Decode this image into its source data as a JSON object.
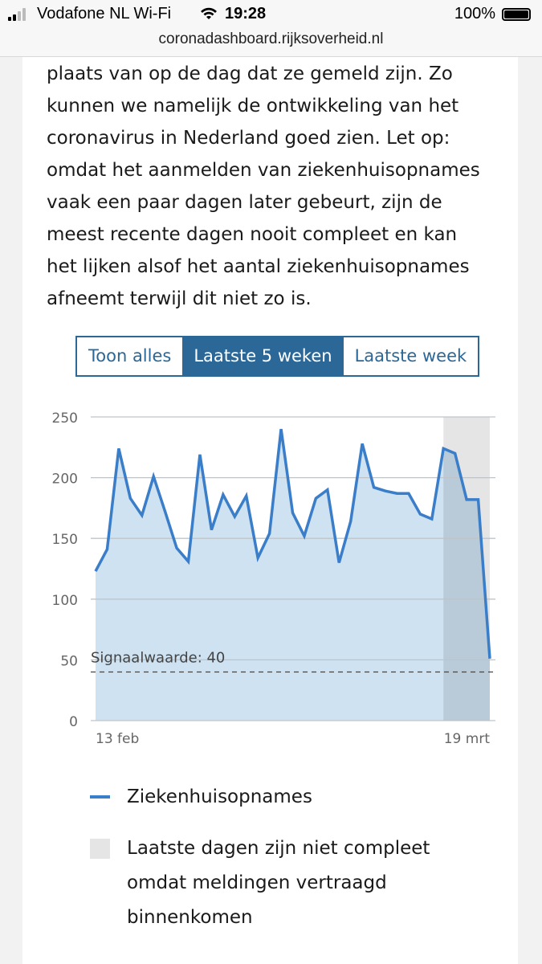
{
  "status_bar": {
    "carrier": "Vodafone NL Wi-Fi",
    "time": "19:28",
    "battery": "100%",
    "battery_level": 1.0,
    "url": "coronadashboard.rijksoverheid.nl"
  },
  "paragraph": {
    "lines": [
      "plaats van op de dag dat ze gemeld zijn. Zo",
      "kunnen we namelijk de ontwikkeling van het",
      "coronavirus in Nederland goed zien. Let op:",
      "omdat het aanmelden van ziekenhuisopnames",
      "vaak een paar dagen later gebeurt, zijn de",
      "meest recente dagen nooit compleet en kan",
      "het lijken alsof het aantal ziekenhuisopnames",
      "afneemt terwijl dit niet zo is."
    ]
  },
  "range_toggle": {
    "options": [
      "Toon alles",
      "Laatste 5 weken",
      "Laatste week"
    ],
    "selected": "Laatste 5 weken"
  },
  "chart_data": {
    "type": "area",
    "x_start": "13 feb",
    "x_end": "19 mrt",
    "x_tick_labels": [
      "13 feb",
      "19 mrt"
    ],
    "y_ticks": [
      0,
      50,
      100,
      150,
      200,
      250
    ],
    "ylim": [
      0,
      250
    ],
    "grid": true,
    "series": [
      {
        "name": "Ziekenhuisopnames",
        "color": "#3a7dc9",
        "fill": "#cfe2f1",
        "values": [
          123,
          141,
          224,
          183,
          169,
          201,
          172,
          142,
          131,
          219,
          157,
          186,
          168,
          185,
          134,
          154,
          240,
          171,
          152,
          183,
          190,
          130,
          164,
          228,
          192,
          189,
          187,
          187,
          170,
          166,
          224,
          220,
          182,
          182,
          51
        ]
      }
    ],
    "threshold": {
      "label": "Signaalwaarde: 40",
      "value": 40
    },
    "incomplete_last_days": 4,
    "legend": [
      "Ziekenhuisopnames",
      "Laatste dagen zijn niet compleet omdat meldingen vertraagd binnenkomen"
    ]
  },
  "legend": {
    "series_label": "Ziekenhuisopnames",
    "incomplete_lines": [
      "Laatste dagen zijn niet compleet",
      "omdat meldingen vertraagd",
      "binnenkomen"
    ]
  }
}
